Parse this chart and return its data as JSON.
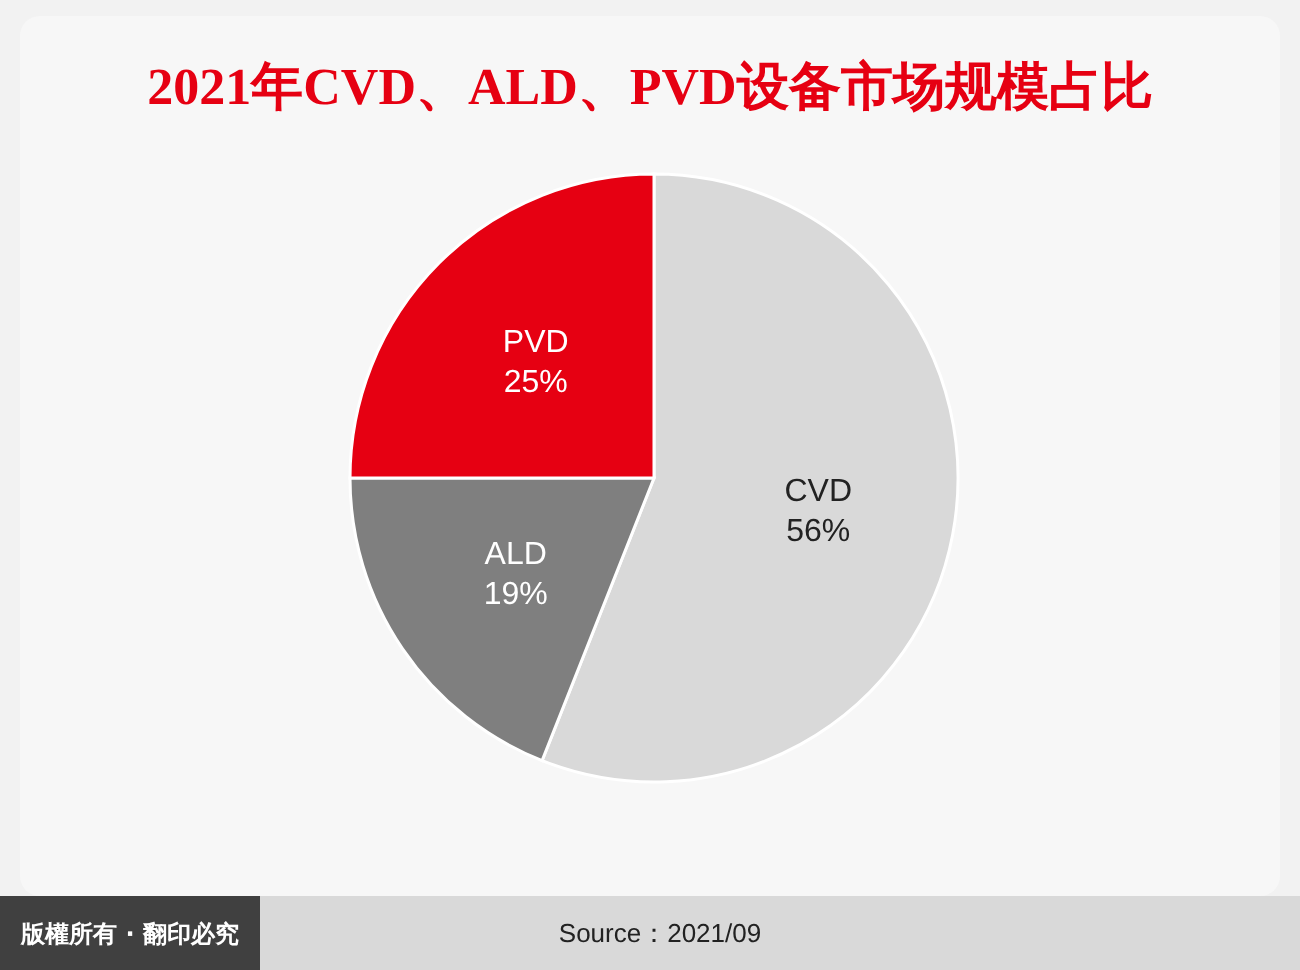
{
  "chart_data": {
    "type": "pie",
    "title": "2021年CVD、ALD、PVD设备市场规模占比",
    "categories": [
      "CVD",
      "ALD",
      "PVD"
    ],
    "values": [
      56,
      19,
      25
    ],
    "colors": [
      "#d9d9d9",
      "#7f7f7f",
      "#e60012"
    ],
    "value_labels": [
      "56%",
      "19%",
      "25%"
    ],
    "annotations": [
      "版權所有 · 翻印必究",
      "Source：2021/09"
    ]
  }
}
